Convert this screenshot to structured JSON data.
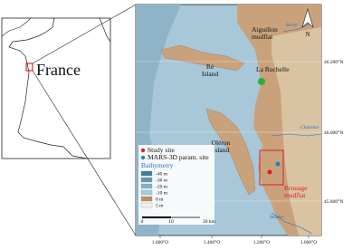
{
  "inset": {
    "label": "France"
  },
  "map": {
    "places": {
      "aiguillon": [
        "Aiguillon",
        "mudflat"
      ],
      "re": [
        "Ré",
        "Island"
      ],
      "la_rochelle": "La Rochelle",
      "oleron": [
        "Oléron",
        "Island"
      ],
      "brouage": [
        "Brouage",
        "mudflat"
      ]
    },
    "rivers": {
      "sevre": "Sèvre",
      "charente": "Charente",
      "seudre": "Seudre"
    },
    "north": "N",
    "legend": {
      "sites": [
        "Study site",
        "MARS-3D param. site"
      ],
      "bathymetry_title": "Bathymetry",
      "bathymetry": [
        "-40 m",
        "-30 m",
        "-20 m",
        "-10 m",
        "0 m",
        "5 m"
      ]
    },
    "scale": [
      "0",
      "10",
      "20 km"
    ],
    "lat_labels": [
      "46.200°N",
      "46.000°N",
      "45.800°N"
    ],
    "lon_labels": [
      "1.600°O",
      "1.400°O",
      "1.200°O",
      "1.000°O"
    ]
  }
}
